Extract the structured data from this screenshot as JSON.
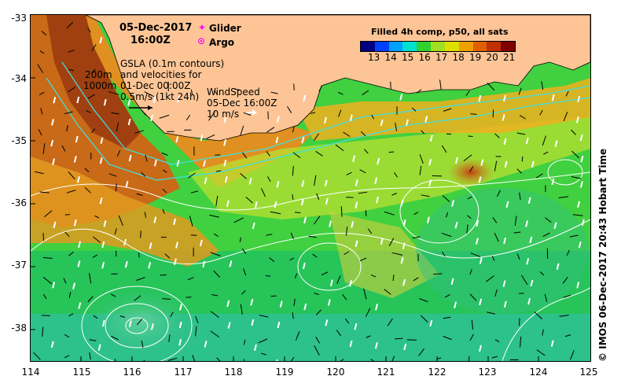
{
  "map": {
    "title_date": "05-Dec-2017",
    "title_time": "16:00Z",
    "legend": {
      "glider_label": "Glider",
      "argo_label": "Argo",
      "glider_color": "#ff00ff",
      "argo_color": "#ff00ff"
    },
    "sst_legend": {
      "title": "Filled 4h comp, p50, all sats",
      "ticks": [
        "13",
        "14",
        "15",
        "16",
        "17",
        "18",
        "19",
        "20",
        "21"
      ],
      "colors": [
        "#000080",
        "#0040ff",
        "#00a0ff",
        "#00e0d0",
        "#30d030",
        "#a0e020",
        "#e0e000",
        "#f0a000",
        "#e06000",
        "#c03000",
        "#800000"
      ]
    },
    "gsla_note": {
      "line1": "GSLA (0.1m contours)",
      "line2": "and velocities for",
      "line3": "01-Dec 00:00Z",
      "line4": "0.5m/s (1kt 24h)"
    },
    "contour_labels": {
      "c200": "200m",
      "c1000": "1000m"
    },
    "wind_note": {
      "line1": "WindSpeed",
      "line2": "05-Dec 16:00Z",
      "line3": "10 m/s"
    },
    "axes": {
      "y_ticks": [
        "-33",
        "-34",
        "-35",
        "-36",
        "-37",
        "-38"
      ],
      "x_ticks": [
        "114",
        "115",
        "116",
        "117",
        "118",
        "119",
        "120",
        "121",
        "122",
        "123",
        "124",
        "125"
      ]
    },
    "credit": "© IMOS 06-Dec-2017 20:43 Hobart Time",
    "colors": {
      "land": "#fdc596",
      "coast": "#000000",
      "contour": "#ffffff",
      "isobath": "#40e0e0"
    }
  }
}
